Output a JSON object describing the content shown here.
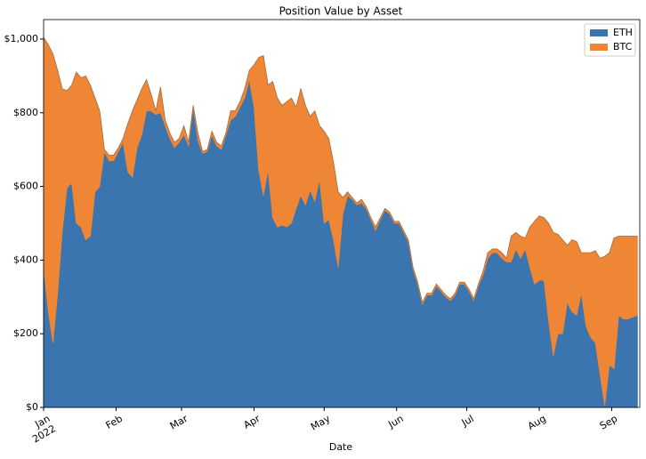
{
  "chart_data": {
    "type": "stacked_area",
    "title": "Position Value by Asset",
    "xlabel": "Date",
    "x": [
      0,
      2,
      4,
      6,
      8,
      10,
      12,
      14,
      16,
      18,
      20,
      22,
      24,
      26,
      28,
      30,
      32,
      34,
      36,
      38,
      40,
      42,
      44,
      46,
      48,
      50,
      52,
      54,
      56,
      58,
      60,
      62,
      64,
      66,
      68,
      70,
      72,
      74,
      76,
      78,
      80,
      82,
      84,
      86,
      88,
      90,
      92,
      94,
      96,
      98,
      100,
      102,
      104,
      106,
      108,
      110,
      112,
      114,
      116,
      118,
      120,
      122,
      124,
      126,
      128,
      130,
      132,
      134,
      136,
      138,
      140,
      142,
      144,
      146,
      148,
      150,
      152,
      154,
      156,
      158,
      160,
      162,
      164,
      166,
      168,
      170,
      172,
      174,
      176,
      178,
      180,
      182,
      184,
      186,
      188,
      190,
      192,
      194,
      196,
      198,
      200,
      202,
      204,
      206,
      208,
      210,
      212,
      214,
      216,
      218,
      220,
      222,
      224,
      226,
      228,
      230,
      232,
      234,
      236,
      238,
      240,
      242,
      244,
      246,
      248,
      250,
      254
    ],
    "series": [
      {
        "name": "ETH",
        "color": "#3a75af",
        "values": [
          380,
          260,
          175,
          310,
          480,
          595,
          610,
          500,
          490,
          455,
          465,
          585,
          600,
          695,
          670,
          670,
          695,
          720,
          640,
          625,
          705,
          740,
          805,
          805,
          795,
          800,
          765,
          730,
          705,
          720,
          740,
          710,
          815,
          725,
          690,
          695,
          740,
          710,
          700,
          740,
          780,
          790,
          815,
          840,
          890,
          815,
          645,
          575,
          645,
          515,
          490,
          495,
          490,
          500,
          540,
          575,
          550,
          590,
          560,
          620,
          500,
          510,
          455,
          380,
          525,
          575,
          565,
          550,
          555,
          540,
          510,
          480,
          510,
          535,
          525,
          500,
          500,
          475,
          450,
          375,
          335,
          280,
          305,
          305,
          330,
          315,
          300,
          290,
          305,
          335,
          335,
          315,
          290,
          330,
          360,
          405,
          420,
          420,
          405,
          395,
          395,
          430,
          405,
          430,
          380,
          335,
          345,
          345,
          235,
          140,
          200,
          200,
          285,
          260,
          250,
          310,
          220,
          190,
          175,
          90,
          5,
          115,
          105,
          250,
          240,
          240,
          250
        ]
      },
      {
        "name": "BTC",
        "color": "#ef8636",
        "values": [
          625,
          725,
          785,
          605,
          385,
          265,
          265,
          410,
          405,
          445,
          410,
          255,
          205,
          5,
          15,
          15,
          10,
          10,
          130,
          180,
          130,
          125,
          85,
          45,
          10,
          70,
          15,
          15,
          15,
          10,
          25,
          10,
          5,
          20,
          5,
          5,
          10,
          10,
          10,
          5,
          25,
          15,
          15,
          25,
          25,
          115,
          305,
          380,
          230,
          370,
          350,
          325,
          340,
          340,
          275,
          290,
          270,
          200,
          245,
          145,
          250,
          220,
          210,
          205,
          45,
          10,
          5,
          5,
          10,
          5,
          5,
          10,
          5,
          5,
          5,
          5,
          5,
          5,
          5,
          5,
          5,
          5,
          5,
          5,
          5,
          5,
          5,
          5,
          5,
          5,
          5,
          5,
          5,
          5,
          10,
          15,
          10,
          10,
          15,
          10,
          70,
          45,
          60,
          30,
          110,
          170,
          175,
          170,
          265,
          335,
          270,
          255,
          155,
          195,
          200,
          110,
          200,
          230,
          250,
          315,
          405,
          305,
          355,
          215,
          225,
          225,
          215
        ]
      }
    ],
    "xlim": [
      0,
      255
    ],
    "xticks": [
      {
        "value": 0,
        "label": "Jan\n2022"
      },
      {
        "value": 31,
        "label": "Feb"
      },
      {
        "value": 59,
        "label": "Mar"
      },
      {
        "value": 90,
        "label": "Apr"
      },
      {
        "value": 120,
        "label": "May"
      },
      {
        "value": 151,
        "label": "Jun"
      },
      {
        "value": 181,
        "label": "Jul"
      },
      {
        "value": 212,
        "label": "Aug"
      },
      {
        "value": 243,
        "label": "Sep"
      }
    ],
    "ylim": [
      0,
      1053
    ],
    "yticks": [
      {
        "value": 0,
        "label": "$0"
      },
      {
        "value": 200,
        "label": "$200"
      },
      {
        "value": 400,
        "label": "$400"
      },
      {
        "value": 600,
        "label": "$600"
      },
      {
        "value": 800,
        "label": "$800"
      },
      {
        "value": 1000,
        "label": "$1,000"
      }
    ],
    "legend": "upper right"
  }
}
